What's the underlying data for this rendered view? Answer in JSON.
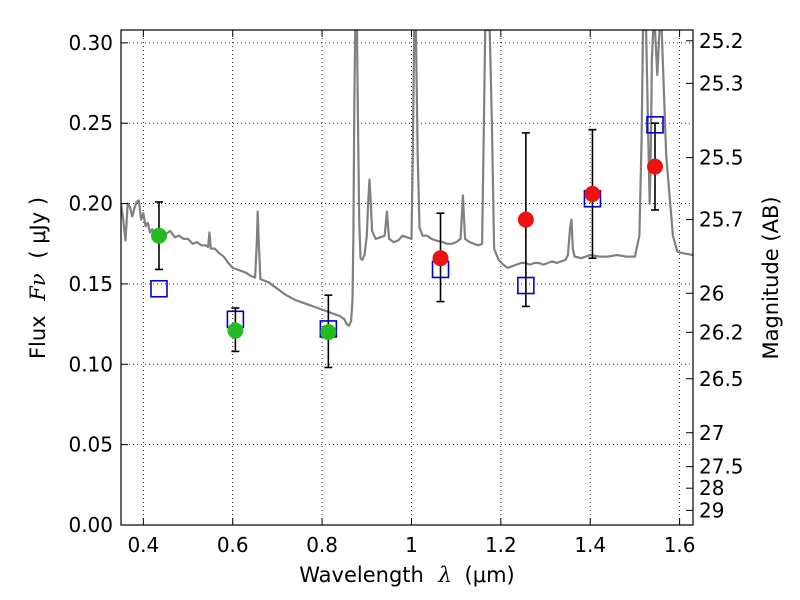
{
  "chart_data": {
    "type": "scatter",
    "xlabel_prefix": "Wavelength",
    "xlabel_symbol": "λ",
    "xlabel_unit": "(μm)",
    "ylabel_prefix": "Flux",
    "ylabel_symbol": "Fν",
    "ylabel_unit": "( μJy )",
    "y2label": "Magnitude (AB)",
    "xlim": [
      0.35,
      1.63
    ],
    "ylim": [
      0.0,
      0.308
    ],
    "x_ticks": [
      0.4,
      0.6,
      0.8,
      1.0,
      1.2,
      1.4,
      1.6
    ],
    "x_tick_labels": [
      "0.4",
      "0.6",
      "0.8",
      "1",
      "1.2",
      "1.4",
      "1.6"
    ],
    "y_ticks": [
      0.0,
      0.05,
      0.1,
      0.15,
      0.2,
      0.25,
      0.3
    ],
    "y_tick_labels": [
      "0.00",
      "0.05",
      "0.10",
      "0.15",
      "0.20",
      "0.25",
      "0.30"
    ],
    "mag_ticks": [
      {
        "label": "25.2",
        "flux": 0.3013
      },
      {
        "label": "25.3",
        "flux": 0.2748
      },
      {
        "label": "25.5",
        "flux": 0.2286
      },
      {
        "label": "25.7",
        "flux": 0.1901
      },
      {
        "label": "26",
        "flux": 0.1442
      },
      {
        "label": "26.2",
        "flux": 0.1199
      },
      {
        "label": "26.5",
        "flux": 0.091
      },
      {
        "label": "27",
        "flux": 0.0574
      },
      {
        "label": "27.5",
        "flux": 0.0363
      },
      {
        "label": "28",
        "flux": 0.0229
      },
      {
        "label": "29",
        "flux": 0.0091
      }
    ],
    "grid": true,
    "colors": {
      "green": "#22bb22",
      "red": "#ee1111",
      "blue": "#0000cc",
      "model": "#808080"
    },
    "observed_green": [
      {
        "x": 0.435,
        "y": 0.18,
        "err_low": 0.159,
        "err_high": 0.201
      },
      {
        "x": 0.606,
        "y": 0.121,
        "err_low": 0.108,
        "err_high": 0.135
      },
      {
        "x": 0.814,
        "y": 0.12,
        "err_low": 0.098,
        "err_high": 0.143
      }
    ],
    "observed_red": [
      {
        "x": 1.065,
        "y": 0.166,
        "err_low": 0.139,
        "err_high": 0.194
      },
      {
        "x": 1.256,
        "y": 0.19,
        "err_low": 0.136,
        "err_high": 0.244
      },
      {
        "x": 1.405,
        "y": 0.206,
        "err_low": 0.166,
        "err_high": 0.246
      },
      {
        "x": 1.545,
        "y": 0.223,
        "err_low": 0.196,
        "err_high": 0.25
      }
    ],
    "model_boxes": [
      {
        "x": 0.435,
        "y": 0.147
      },
      {
        "x": 0.606,
        "y": 0.128
      },
      {
        "x": 0.814,
        "y": 0.122
      },
      {
        "x": 1.065,
        "y": 0.159
      },
      {
        "x": 1.256,
        "y": 0.149
      },
      {
        "x": 1.405,
        "y": 0.203
      },
      {
        "x": 1.545,
        "y": 0.249
      }
    ],
    "model_spectrum": [
      [
        0.35,
        0.2
      ],
      [
        0.355,
        0.19
      ],
      [
        0.36,
        0.177
      ],
      [
        0.365,
        0.2
      ],
      [
        0.37,
        0.198
      ],
      [
        0.375,
        0.192
      ],
      [
        0.38,
        0.197
      ],
      [
        0.385,
        0.201
      ],
      [
        0.39,
        0.202
      ],
      [
        0.395,
        0.19
      ],
      [
        0.4,
        0.194
      ],
      [
        0.405,
        0.186
      ],
      [
        0.41,
        0.188
      ],
      [
        0.415,
        0.182
      ],
      [
        0.42,
        0.184
      ],
      [
        0.425,
        0.18
      ],
      [
        0.43,
        0.182
      ],
      [
        0.44,
        0.18
      ],
      [
        0.45,
        0.181
      ],
      [
        0.46,
        0.183
      ],
      [
        0.47,
        0.179
      ],
      [
        0.48,
        0.18
      ],
      [
        0.49,
        0.178
      ],
      [
        0.5,
        0.178
      ],
      [
        0.51,
        0.175
      ],
      [
        0.52,
        0.176
      ],
      [
        0.53,
        0.174
      ],
      [
        0.54,
        0.174
      ],
      [
        0.545,
        0.173
      ],
      [
        0.548,
        0.182
      ],
      [
        0.551,
        0.172
      ],
      [
        0.56,
        0.172
      ],
      [
        0.57,
        0.169
      ],
      [
        0.58,
        0.167
      ],
      [
        0.59,
        0.163
      ],
      [
        0.6,
        0.16
      ],
      [
        0.61,
        0.159
      ],
      [
        0.62,
        0.158
      ],
      [
        0.63,
        0.157
      ],
      [
        0.64,
        0.155
      ],
      [
        0.65,
        0.154
      ],
      [
        0.654,
        0.177
      ],
      [
        0.656,
        0.195
      ],
      [
        0.658,
        0.178
      ],
      [
        0.662,
        0.153
      ],
      [
        0.68,
        0.151
      ],
      [
        0.7,
        0.147
      ],
      [
        0.72,
        0.143
      ],
      [
        0.74,
        0.14
      ],
      [
        0.76,
        0.138
      ],
      [
        0.78,
        0.136
      ],
      [
        0.8,
        0.134
      ],
      [
        0.82,
        0.132
      ],
      [
        0.84,
        0.13
      ],
      [
        0.85,
        0.128
      ],
      [
        0.855,
        0.125
      ],
      [
        0.86,
        0.124
      ],
      [
        0.865,
        0.127
      ],
      [
        0.868,
        0.14
      ],
      [
        0.87,
        0.18
      ],
      [
        0.872,
        0.26
      ],
      [
        0.874,
        0.308
      ],
      [
        0.878,
        0.308
      ],
      [
        0.88,
        0.26
      ],
      [
        0.883,
        0.19
      ],
      [
        0.886,
        0.166
      ],
      [
        0.89,
        0.165
      ],
      [
        0.895,
        0.168
      ],
      [
        0.9,
        0.18
      ],
      [
        0.903,
        0.2
      ],
      [
        0.906,
        0.215
      ],
      [
        0.909,
        0.2
      ],
      [
        0.912,
        0.183
      ],
      [
        0.92,
        0.178
      ],
      [
        0.93,
        0.179
      ],
      [
        0.94,
        0.18
      ],
      [
        0.945,
        0.195
      ],
      [
        0.948,
        0.185
      ],
      [
        0.95,
        0.178
      ],
      [
        0.96,
        0.176
      ],
      [
        0.97,
        0.177
      ],
      [
        0.98,
        0.18
      ],
      [
        0.99,
        0.179
      ],
      [
        1.0,
        0.178
      ],
      [
        1.003,
        0.23
      ],
      [
        1.006,
        0.308
      ],
      [
        1.01,
        0.308
      ],
      [
        1.014,
        0.23
      ],
      [
        1.018,
        0.185
      ],
      [
        1.025,
        0.18
      ],
      [
        1.035,
        0.18
      ],
      [
        1.045,
        0.178
      ],
      [
        1.055,
        0.177
      ],
      [
        1.07,
        0.176
      ],
      [
        1.08,
        0.175
      ],
      [
        1.09,
        0.175
      ],
      [
        1.1,
        0.176
      ],
      [
        1.11,
        0.178
      ],
      [
        1.115,
        0.205
      ],
      [
        1.12,
        0.178
      ],
      [
        1.13,
        0.176
      ],
      [
        1.14,
        0.175
      ],
      [
        1.15,
        0.174
      ],
      [
        1.158,
        0.175
      ],
      [
        1.162,
        0.25
      ],
      [
        1.165,
        0.308
      ],
      [
        1.175,
        0.308
      ],
      [
        1.18,
        0.25
      ],
      [
        1.185,
        0.172
      ],
      [
        1.195,
        0.165
      ],
      [
        1.205,
        0.162
      ],
      [
        1.215,
        0.16
      ],
      [
        1.225,
        0.161
      ],
      [
        1.235,
        0.162
      ],
      [
        1.245,
        0.163
      ],
      [
        1.255,
        0.163
      ],
      [
        1.265,
        0.162
      ],
      [
        1.275,
        0.163
      ],
      [
        1.285,
        0.163
      ],
      [
        1.295,
        0.162
      ],
      [
        1.305,
        0.163
      ],
      [
        1.315,
        0.164
      ],
      [
        1.325,
        0.163
      ],
      [
        1.335,
        0.164
      ],
      [
        1.345,
        0.165
      ],
      [
        1.35,
        0.168
      ],
      [
        1.355,
        0.185
      ],
      [
        1.358,
        0.19
      ],
      [
        1.361,
        0.172
      ],
      [
        1.365,
        0.167
      ],
      [
        1.38,
        0.166
      ],
      [
        1.4,
        0.168
      ],
      [
        1.42,
        0.167
      ],
      [
        1.44,
        0.167
      ],
      [
        1.46,
        0.168
      ],
      [
        1.48,
        0.167
      ],
      [
        1.5,
        0.167
      ],
      [
        1.51,
        0.18
      ],
      [
        1.515,
        0.24
      ],
      [
        1.518,
        0.308
      ],
      [
        1.525,
        0.308
      ],
      [
        1.53,
        0.24
      ],
      [
        1.533,
        0.2
      ],
      [
        1.536,
        0.24
      ],
      [
        1.538,
        0.29
      ],
      [
        1.541,
        0.308
      ],
      [
        1.545,
        0.308
      ],
      [
        1.55,
        0.28
      ],
      [
        1.555,
        0.308
      ],
      [
        1.56,
        0.308
      ],
      [
        1.57,
        0.23
      ],
      [
        1.585,
        0.18
      ],
      [
        1.595,
        0.17
      ],
      [
        1.61,
        0.169
      ],
      [
        1.63,
        0.168
      ]
    ]
  }
}
